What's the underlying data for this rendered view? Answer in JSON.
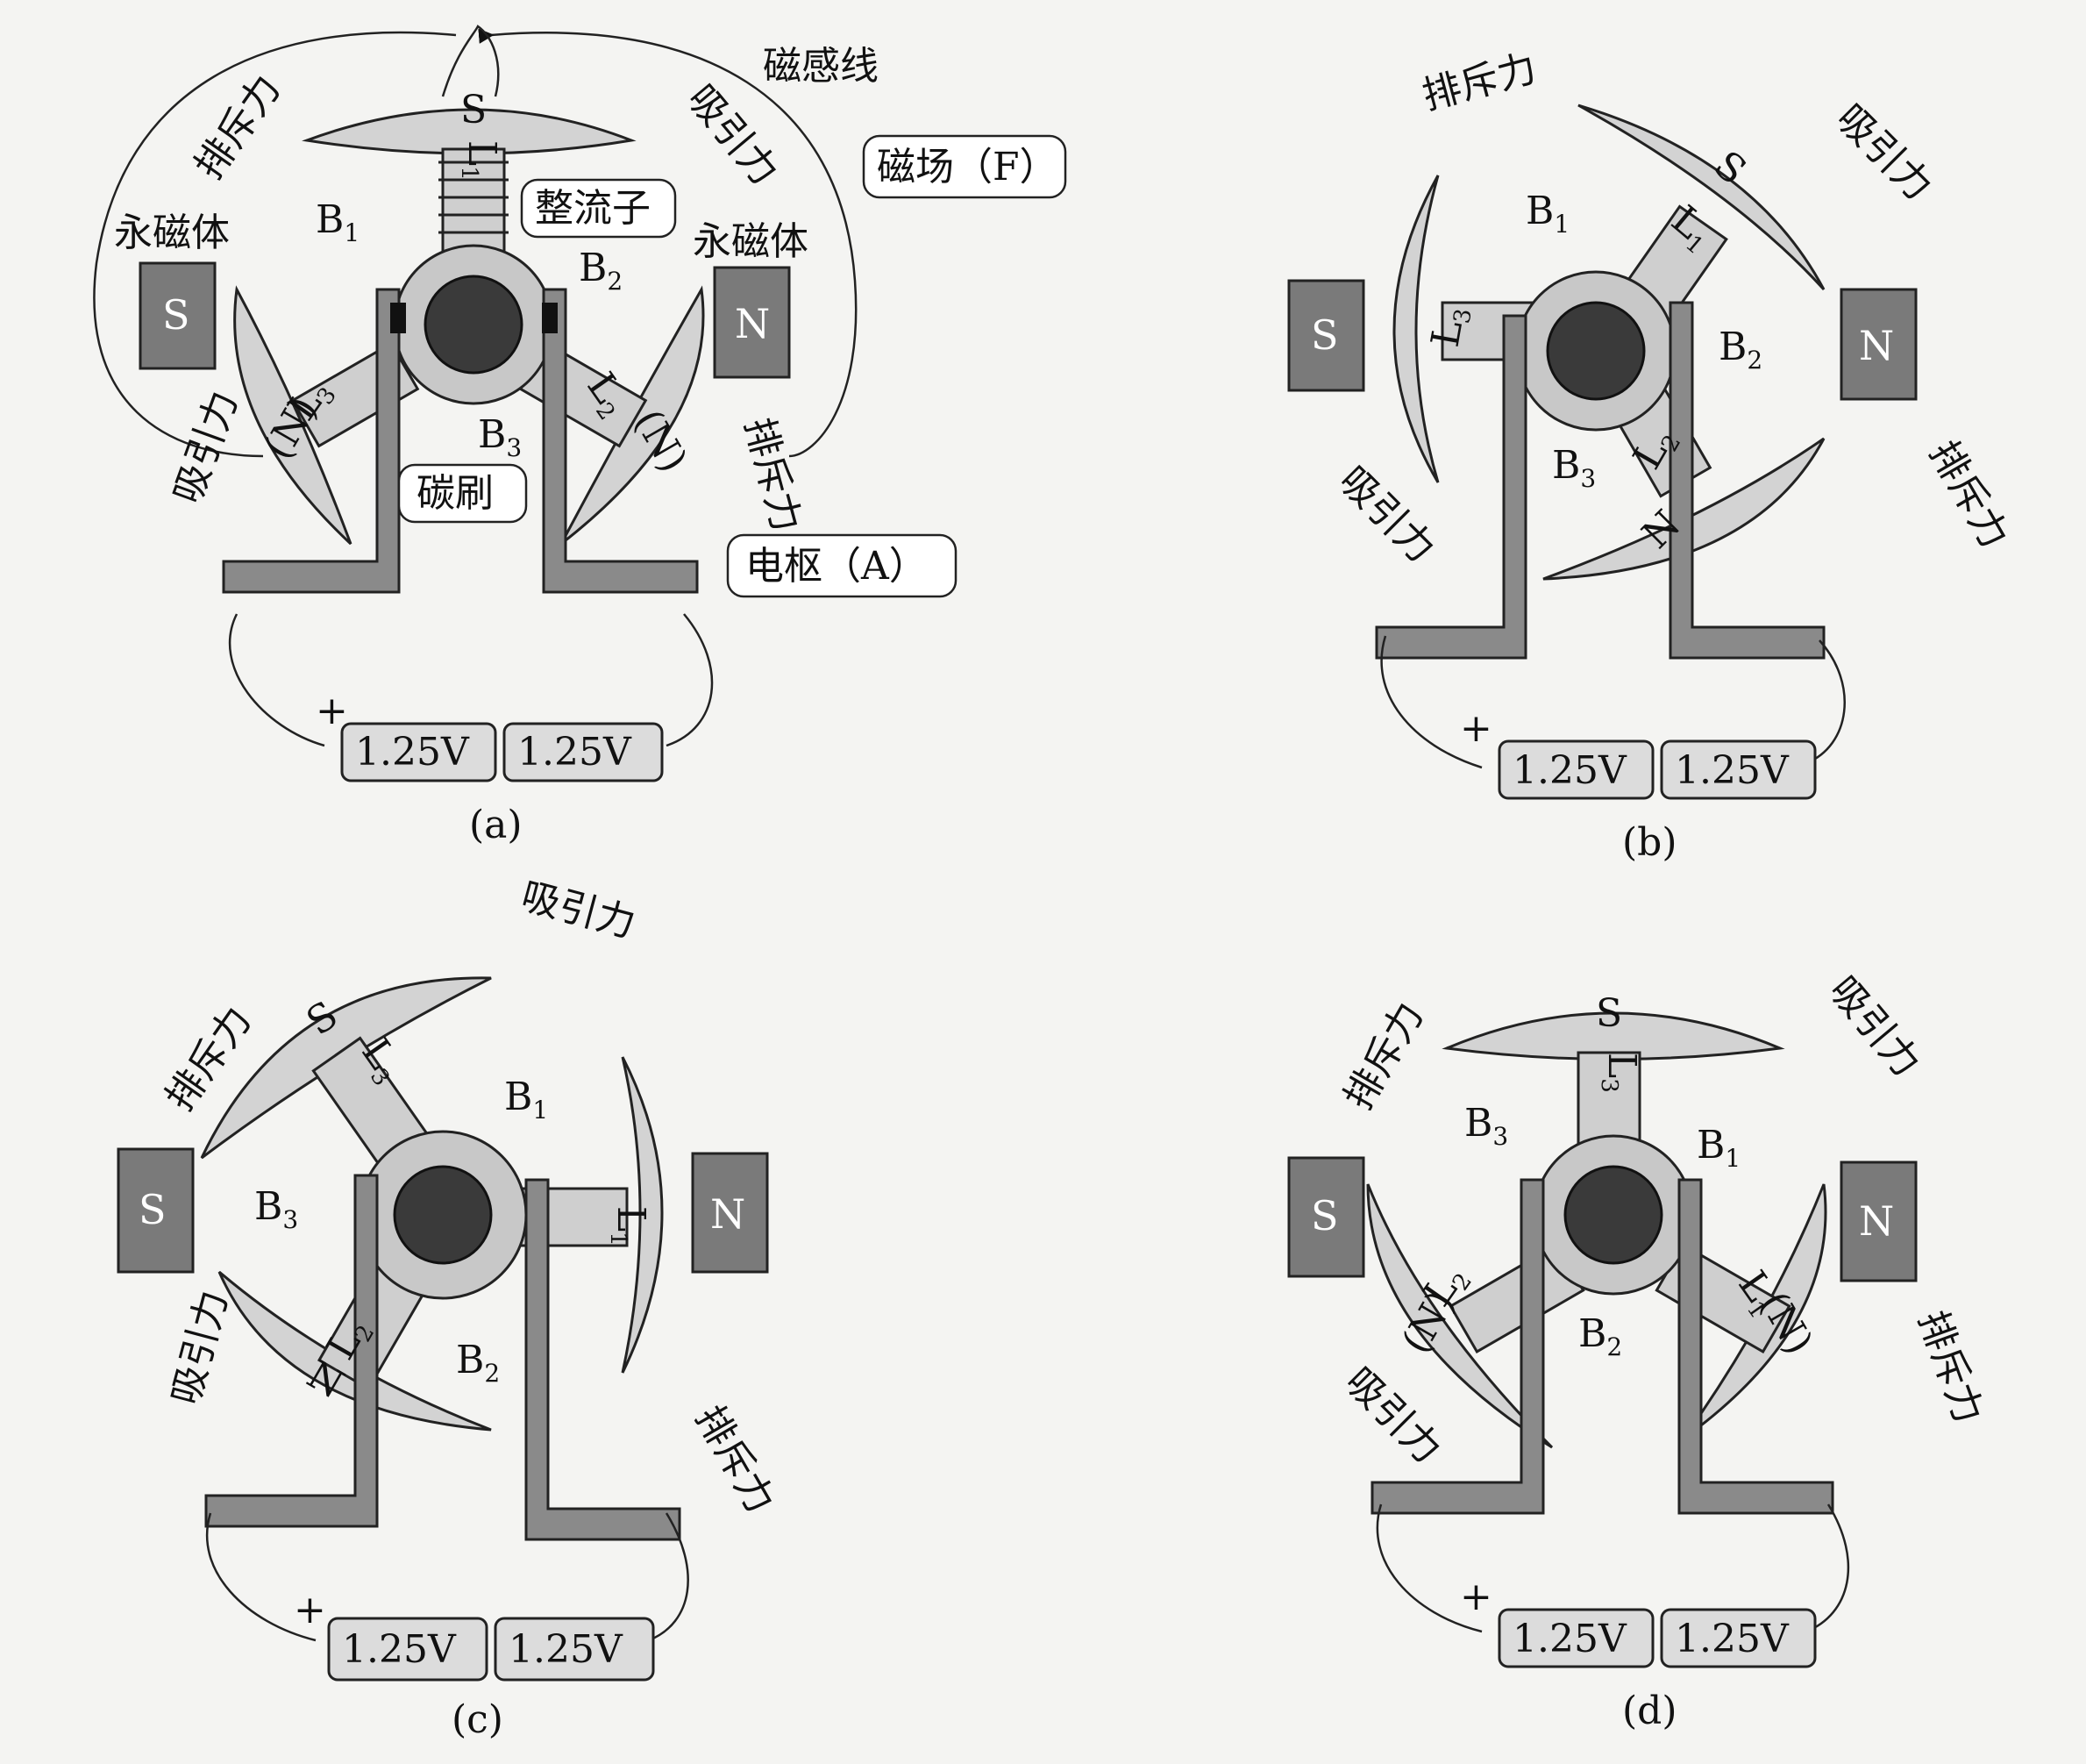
{
  "panels": [
    {
      "id": "a",
      "caption": "(a)",
      "labels": {
        "magnet_left_title": "永磁体",
        "magnet_right_title": "永磁体",
        "magnet_left_pole": "S",
        "magnet_right_pole": "N",
        "field_lines": "磁感线",
        "field": "磁场（F）",
        "commutator": "整流子",
        "brush": "碳刷",
        "armature": "电枢（A）",
        "repel_1": "排斥力",
        "repel_2": "排斥力",
        "attract_1": "吸引力",
        "attract_2": "吸引力",
        "b1": "B",
        "b1_sub": "1",
        "b2": "B",
        "b2_sub": "2",
        "b3": "B",
        "b3_sub": "3",
        "top_pole": "S",
        "l1": "L",
        "l1_sub": "1",
        "left_pole": "(N)",
        "right_pole": "(N)",
        "l2": "L",
        "l2_sub": "2",
        "l3": "L",
        "l3_sub": "3"
      },
      "batteries": [
        "1.25V",
        "1.25V"
      ],
      "plus": "+"
    },
    {
      "id": "b",
      "caption": "(b)",
      "labels": {
        "magnet_left_pole": "S",
        "magnet_right_pole": "N",
        "repel_1": "排斥力",
        "repel_2": "排斥力",
        "attract_1": "吸引力",
        "attract_2": "吸引力",
        "b1": "B",
        "b1_sub": "1",
        "b2": "B",
        "b2_sub": "2",
        "b3": "B",
        "b3_sub": "3",
        "s_pole": "S",
        "n_pole": "N",
        "l1": "L",
        "l1_sub": "1",
        "l2": "L",
        "l2_sub": "2",
        "l3": "L",
        "l3_sub": "3"
      },
      "batteries": [
        "1.25V",
        "1.25V"
      ],
      "plus": "+"
    },
    {
      "id": "c",
      "caption": "(c)",
      "labels": {
        "magnet_left_pole": "S",
        "magnet_right_pole": "N",
        "repel_1": "排斥力",
        "repel_2": "排斥力",
        "attract_1": "吸引力",
        "attract_2": "吸引力",
        "b1": "B",
        "b1_sub": "1",
        "b2": "B",
        "b2_sub": "2",
        "b3": "B",
        "b3_sub": "3",
        "s_pole": "S",
        "n_pole": "N",
        "l1": "L",
        "l1_sub": "1",
        "l2": "L",
        "l2_sub": "2",
        "l3": "L",
        "l3_sub": "3"
      },
      "batteries": [
        "1.25V",
        "1.25V"
      ],
      "plus": "+"
    },
    {
      "id": "d",
      "caption": "(d)",
      "labels": {
        "magnet_left_pole": "S",
        "magnet_right_pole": "N",
        "repel_1": "排斥力",
        "repel_2": "排斥力",
        "attract_1": "吸引力",
        "attract_2": "吸引力",
        "b1": "B",
        "b1_sub": "1",
        "b2": "B",
        "b2_sub": "2",
        "b3": "B",
        "b3_sub": "3",
        "top_pole": "S",
        "l1": "L",
        "l1_sub": "1",
        "l2": "L",
        "l2_sub": "2",
        "l3": "L",
        "l3_sub": "3",
        "left_pole": "(N)",
        "right_pole": "(N)"
      },
      "batteries": [
        "1.25V",
        "1.25V"
      ],
      "plus": "+"
    }
  ]
}
